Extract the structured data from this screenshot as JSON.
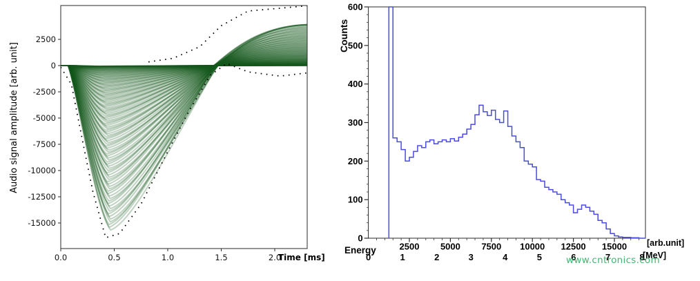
{
  "watermark": {
    "text": "www.cntronics.com",
    "color": "#2fae62"
  },
  "chart_data": [
    {
      "type": "line",
      "subtype": "overlaid-waveform-density",
      "title": "",
      "ylabel": "Audio signal amplitude [arb. unit]",
      "xlabel": "Time [ms]",
      "xlim": [
        0,
        2.3
      ],
      "ylim": [
        -17400,
        5700
      ],
      "xticks": [
        0,
        0.5,
        1,
        1.5,
        2
      ],
      "xtick_labels": [
        "0.0",
        "0.5",
        "1.0",
        "1.5",
        "2.0"
      ],
      "yticks": [
        2500,
        0,
        -2500,
        -5000,
        -7500,
        -10000,
        -12500,
        -15000
      ],
      "ytick_labels": [
        "2500",
        "0",
        "-2500",
        "-5000",
        "-7500",
        "-10000",
        "-12500",
        "-15000"
      ],
      "trace_color": "#15571f",
      "outline_color": "#000000",
      "grid": false,
      "pulse_shape": {
        "n_pulses": 130,
        "amplitude_min": 60,
        "amplitude_max": 15800,
        "amplitude_bias_exponent": 2.2,
        "flat_until_ms": 0.07,
        "minimum_at_ms": 0.42,
        "zero_crossing_ms": 1.45,
        "overshoot_fraction": 0.27,
        "overshoot_cap": 3900,
        "end_ms": 2.3
      },
      "outer_envelope_min": [
        [
          0,
          -150
        ],
        [
          0.1,
          -1800
        ],
        [
          0.22,
          -8000
        ],
        [
          0.3,
          -12000
        ],
        [
          0.42,
          -16400
        ],
        [
          0.55,
          -16000
        ],
        [
          0.75,
          -13200
        ],
        [
          1,
          -8200
        ],
        [
          1.2,
          -4300
        ],
        [
          1.4,
          -900
        ],
        [
          1.55,
          200
        ],
        [
          1.75,
          -600
        ],
        [
          2.05,
          -1000
        ],
        [
          2.3,
          -700
        ]
      ],
      "outer_envelope_max": [
        [
          0.82,
          350
        ],
        [
          1.05,
          700
        ],
        [
          1.3,
          1800
        ],
        [
          1.5,
          3800
        ],
        [
          1.75,
          5200
        ],
        [
          2.3,
          5700
        ]
      ]
    },
    {
      "type": "bar",
      "subtype": "step-histogram",
      "title": "",
      "ylabel": "Counts",
      "xlabel_arb": "[arb.unit]",
      "xlabel_energy": "Energy",
      "xlabel_mev": "[MeV]",
      "line_color": "#4a4ae0",
      "grid": false,
      "ylim": [
        0,
        600
      ],
      "yticks": [
        0,
        100,
        200,
        300,
        400,
        500,
        600
      ],
      "xlim_arb": [
        0,
        16900
      ],
      "xticks_arb": [
        2500,
        5000,
        7500,
        10000,
        12500,
        15000
      ],
      "xticks_mev": [
        0,
        1,
        2,
        3,
        4,
        5,
        6,
        7,
        8
      ],
      "bin_start_arb": 1250,
      "bin_width_arb": 250,
      "first_bin_clipped": true,
      "counts": [
        600,
        260,
        250,
        230,
        200,
        210,
        225,
        240,
        235,
        250,
        255,
        245,
        250,
        255,
        250,
        258,
        252,
        262,
        270,
        283,
        295,
        320,
        345,
        328,
        318,
        332,
        308,
        300,
        330,
        290,
        265,
        250,
        235,
        200,
        192,
        185,
        152,
        148,
        132,
        126,
        120,
        114,
        100,
        92,
        86,
        66,
        75,
        86,
        80,
        70,
        62,
        46,
        40,
        24,
        12,
        6,
        3,
        2,
        2,
        1,
        1
      ]
    }
  ]
}
